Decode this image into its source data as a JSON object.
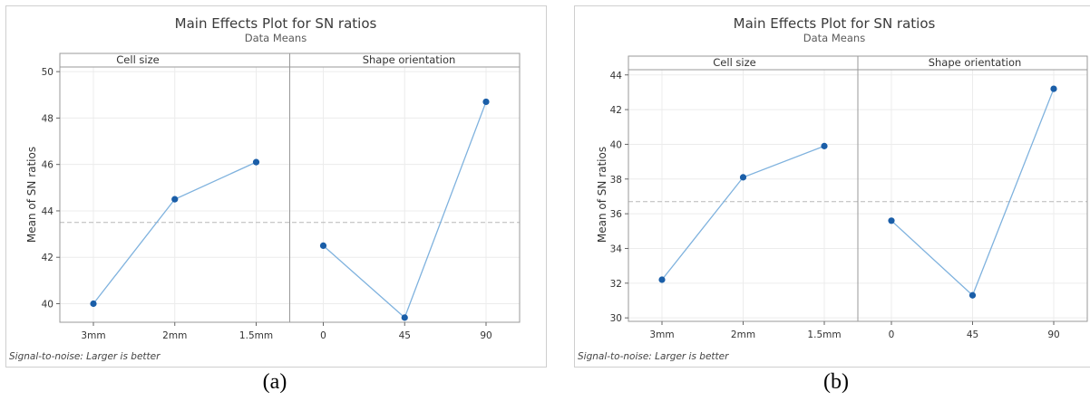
{
  "colors": {
    "line": "#7fb2de",
    "marker": "#1a5ea8",
    "grid": "#ececec",
    "frame": "#9a9a9a",
    "reference_line": "#b8b8b8"
  },
  "chart_data": [
    {
      "type": "line",
      "panel_label": "(a)",
      "title": "Main Effects Plot for SN ratios",
      "subtitle": "Data Means",
      "ylabel": "Mean of SN ratios",
      "footnote": "Signal-to-noise: Larger is better",
      "ylim": [
        39.2,
        50.2
      ],
      "yticks": [
        40,
        42,
        44,
        46,
        48,
        50
      ],
      "overall_mean": 43.5,
      "grid": true,
      "facets": [
        {
          "name": "Cell size",
          "categories": [
            "3mm",
            "2mm",
            "1.5mm"
          ],
          "values": [
            40.0,
            44.5,
            46.1
          ]
        },
        {
          "name": "Shape orientation",
          "categories": [
            "0",
            "45",
            "90"
          ],
          "values": [
            42.5,
            39.4,
            48.7
          ]
        }
      ]
    },
    {
      "type": "line",
      "panel_label": "(b)",
      "title": "Main Effects Plot for SN ratios",
      "subtitle": "Data Means",
      "ylabel": "Mean of SN ratios",
      "footnote": "Signal-to-noise: Larger is better",
      "ylim": [
        29.8,
        44.3
      ],
      "yticks": [
        30,
        32,
        34,
        36,
        38,
        40,
        42,
        44
      ],
      "overall_mean": 36.7,
      "grid": true,
      "facets": [
        {
          "name": "Cell size",
          "categories": [
            "3mm",
            "2mm",
            "1.5mm"
          ],
          "values": [
            32.2,
            38.1,
            39.9
          ]
        },
        {
          "name": "Shape orientation",
          "categories": [
            "0",
            "45",
            "90"
          ],
          "values": [
            35.6,
            31.3,
            43.2
          ]
        }
      ]
    }
  ]
}
